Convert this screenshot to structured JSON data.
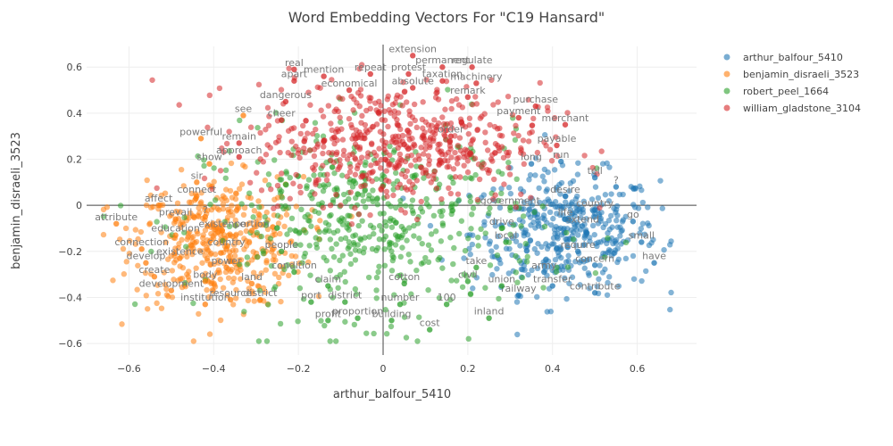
{
  "chart_data": {
    "type": "scatter",
    "title": "Word Embedding Vectors For \"C19 Hansard\"",
    "xlabel": "arthur_balfour_5410",
    "ylabel": "benjamin_disraeli_3523",
    "xlim": [
      -0.7,
      0.74
    ],
    "ylim": [
      -0.65,
      0.69
    ],
    "xticks": [
      -0.6,
      -0.4,
      -0.2,
      0,
      0.2,
      0.4,
      0.6
    ],
    "yticks": [
      -0.6,
      -0.4,
      -0.2,
      0,
      0.2,
      0.4,
      0.6
    ],
    "xtick_labels": [
      "−0.6",
      "−0.4",
      "−0.2",
      "0",
      "0.2",
      "0.4",
      "0.6"
    ],
    "ytick_labels": [
      "−0.6",
      "−0.4",
      "−0.2",
      "0",
      "0.2",
      "0.4",
      "0.6"
    ],
    "grid": true,
    "legend_position": "top-right",
    "series": [
      {
        "name": "arthur_balfour_5410",
        "color": "#1f77b4",
        "cloud": {
          "cx": 0.43,
          "cy": -0.12,
          "sx": 0.11,
          "sy": 0.13,
          "n": 420
        },
        "words": [
          {
            "text": "?",
            "x": 0.55,
            "y": 0.08
          },
          {
            "text": "tell",
            "x": 0.5,
            "y": 0.12
          },
          {
            "text": "desire",
            "x": 0.43,
            "y": 0.04
          },
          {
            "text": "country",
            "x": 0.5,
            "y": -0.02
          },
          {
            "text": "extend",
            "x": 0.47,
            "y": -0.09
          },
          {
            "text": "go",
            "x": 0.59,
            "y": -0.07
          },
          {
            "text": "small",
            "x": 0.61,
            "y": -0.16
          },
          {
            "text": "require",
            "x": 0.46,
            "y": -0.2
          },
          {
            "text": "concern",
            "x": 0.5,
            "y": -0.26
          },
          {
            "text": "have",
            "x": 0.64,
            "y": -0.25
          },
          {
            "text": "transfer",
            "x": 0.4,
            "y": -0.35
          },
          {
            "text": "contribute",
            "x": 0.5,
            "y": -0.38
          },
          {
            "text": "army",
            "x": 0.38,
            "y": -0.29
          },
          {
            "text": "railway",
            "x": 0.32,
            "y": -0.39
          },
          {
            "text": "run",
            "x": 0.42,
            "y": 0.19
          },
          {
            "text": "long",
            "x": 0.35,
            "y": 0.18
          },
          {
            "text": "life",
            "x": 0.43,
            "y": -0.06
          }
        ]
      },
      {
        "name": "benjamin_disraeli_3523",
        "color": "#ff7f0e",
        "cloud": {
          "cx": -0.39,
          "cy": -0.16,
          "sx": 0.1,
          "sy": 0.14,
          "n": 420
        },
        "words": [
          {
            "text": "affect",
            "x": -0.53,
            "y": -0.0
          },
          {
            "text": "attribute",
            "x": -0.63,
            "y": -0.08
          },
          {
            "text": "prevail",
            "x": -0.49,
            "y": -0.06
          },
          {
            "text": "education",
            "x": -0.49,
            "y": -0.13
          },
          {
            "text": "connection",
            "x": -0.57,
            "y": -0.19
          },
          {
            "text": "existence",
            "x": -0.48,
            "y": -0.23
          },
          {
            "text": "develop",
            "x": -0.56,
            "y": -0.25
          },
          {
            "text": "create",
            "x": -0.54,
            "y": -0.31
          },
          {
            "text": "development",
            "x": -0.5,
            "y": -0.37
          },
          {
            "text": "institution",
            "x": -0.42,
            "y": -0.43
          },
          {
            "text": "body",
            "x": -0.42,
            "y": -0.33
          },
          {
            "text": "power",
            "x": -0.37,
            "y": -0.27
          },
          {
            "text": "country",
            "x": -0.37,
            "y": -0.19
          },
          {
            "text": "existence",
            "x": -0.38,
            "y": -0.11
          },
          {
            "text": "portion",
            "x": -0.31,
            "y": -0.11
          },
          {
            "text": "resource",
            "x": -0.36,
            "y": -0.41
          },
          {
            "text": "land",
            "x": -0.31,
            "y": -0.34
          },
          {
            "text": "district",
            "x": -0.29,
            "y": -0.41
          },
          {
            "text": "connect",
            "x": -0.44,
            "y": 0.04
          },
          {
            "text": "sir",
            "x": -0.44,
            "y": 0.1
          },
          {
            "text": "show",
            "x": -0.41,
            "y": 0.18
          },
          {
            "text": "powerful",
            "x": -0.43,
            "y": 0.29
          },
          {
            "text": "see",
            "x": -0.33,
            "y": 0.39
          },
          {
            "text": "?",
            "x": -0.42,
            "y": -0.05
          }
        ]
      },
      {
        "name": "robert_peel_1664",
        "color": "#2ca02c",
        "cloud": {
          "cx": -0.02,
          "cy": -0.08,
          "sx": 0.2,
          "sy": 0.2,
          "n": 520
        },
        "words": [
          {
            "text": "profit",
            "x": -0.13,
            "y": -0.5
          },
          {
            "text": "proportion",
            "x": -0.06,
            "y": -0.49
          },
          {
            "text": "building",
            "x": 0.02,
            "y": -0.5
          },
          {
            "text": "cost",
            "x": 0.11,
            "y": -0.54
          },
          {
            "text": "inland",
            "x": 0.25,
            "y": -0.49
          },
          {
            "text": "100",
            "x": 0.15,
            "y": -0.43
          },
          {
            "text": "number",
            "x": 0.04,
            "y": -0.43
          },
          {
            "text": "port",
            "x": -0.17,
            "y": -0.42
          },
          {
            "text": "district",
            "x": -0.09,
            "y": -0.42
          },
          {
            "text": "claim",
            "x": -0.13,
            "y": -0.35
          },
          {
            "text": "cotton",
            "x": 0.05,
            "y": -0.34
          },
          {
            "text": "condition",
            "x": -0.21,
            "y": -0.29
          },
          {
            "text": "people",
            "x": -0.24,
            "y": -0.2
          },
          {
            "text": "civil",
            "x": 0.2,
            "y": -0.33
          },
          {
            "text": "union",
            "x": 0.28,
            "y": -0.35
          },
          {
            "text": "take",
            "x": 0.22,
            "y": -0.27
          },
          {
            "text": "local",
            "x": 0.29,
            "y": -0.16
          },
          {
            "text": "drive",
            "x": 0.28,
            "y": -0.1
          },
          {
            "text": "government",
            "x": 0.3,
            "y": -0.01
          }
        ]
      },
      {
        "name": "william_gladstone_3104",
        "color": "#d62728",
        "cloud": {
          "cx": 0.03,
          "cy": 0.27,
          "sx": 0.17,
          "sy": 0.13,
          "n": 560
        },
        "words": [
          {
            "text": "extension",
            "x": 0.07,
            "y": 0.65
          },
          {
            "text": "permanent",
            "x": 0.14,
            "y": 0.6
          },
          {
            "text": "regulate",
            "x": 0.21,
            "y": 0.6
          },
          {
            "text": "real",
            "x": -0.21,
            "y": 0.59
          },
          {
            "text": "repeat",
            "x": -0.03,
            "y": 0.57
          },
          {
            "text": "protest",
            "x": 0.06,
            "y": 0.57
          },
          {
            "text": "mention",
            "x": -0.14,
            "y": 0.56
          },
          {
            "text": "apart",
            "x": -0.21,
            "y": 0.54
          },
          {
            "text": "taxation",
            "x": 0.14,
            "y": 0.54
          },
          {
            "text": "machinery",
            "x": 0.22,
            "y": 0.53
          },
          {
            "text": "economical",
            "x": -0.08,
            "y": 0.5
          },
          {
            "text": "absolute",
            "x": 0.07,
            "y": 0.51
          },
          {
            "text": "remark",
            "x": 0.2,
            "y": 0.47
          },
          {
            "text": "purchase",
            "x": 0.36,
            "y": 0.43
          },
          {
            "text": "dangerous",
            "x": -0.23,
            "y": 0.45
          },
          {
            "text": "payment",
            "x": 0.32,
            "y": 0.38
          },
          {
            "text": "merchant",
            "x": 0.43,
            "y": 0.35
          },
          {
            "text": "cheer",
            "x": -0.24,
            "y": 0.37
          },
          {
            "text": "order",
            "x": 0.16,
            "y": 0.3
          },
          {
            "text": "payable",
            "x": 0.41,
            "y": 0.26
          },
          {
            "text": "remain",
            "x": -0.34,
            "y": 0.27
          },
          {
            "text": "approach",
            "x": -0.34,
            "y": 0.21
          }
        ]
      }
    ]
  }
}
